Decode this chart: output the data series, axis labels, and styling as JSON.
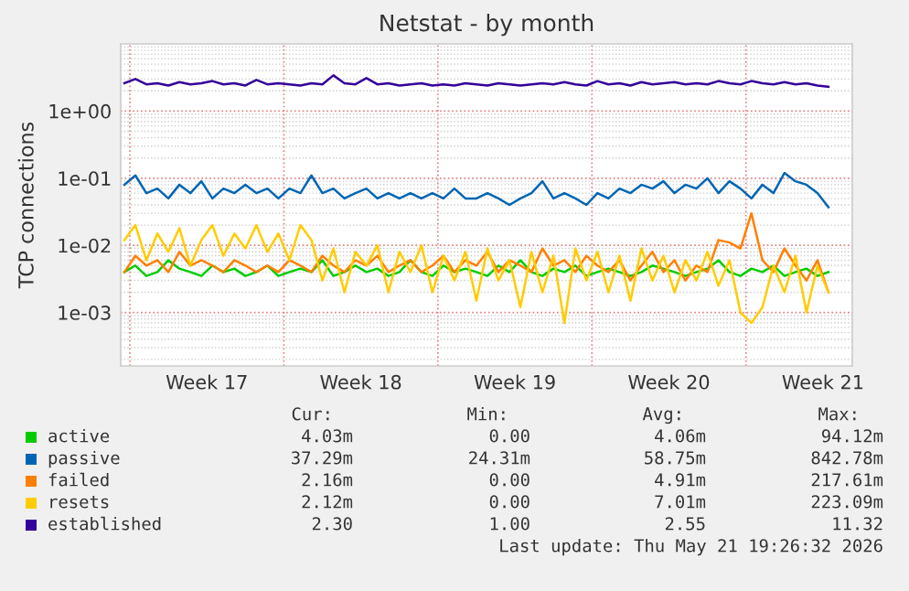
{
  "chart_data": {
    "type": "line",
    "title": "Netstat - by month",
    "ylabel": "TCP connections",
    "log": "y",
    "x": [
      "2026-04-19T18:00",
      "2026-04-20T06:00",
      "2026-04-20T18:00",
      "2026-04-21T06:00",
      "2026-04-21T18:00",
      "2026-04-22T06:00",
      "2026-04-22T18:00",
      "2026-04-23T06:00",
      "2026-04-23T18:00",
      "2026-04-24T06:00",
      "2026-04-24T18:00",
      "2026-04-25T06:00",
      "2026-04-25T18:00",
      "2026-04-26T06:00",
      "2026-04-26T18:00",
      "2026-04-27T06:00",
      "2026-04-27T18:00",
      "2026-04-28T06:00",
      "2026-04-28T18:00",
      "2026-04-29T06:00",
      "2026-04-29T18:00",
      "2026-04-30T06:00",
      "2026-04-30T18:00",
      "2026-05-01T06:00",
      "2026-05-01T18:00",
      "2026-05-02T06:00",
      "2026-05-02T18:00",
      "2026-05-03T06:00",
      "2026-05-03T18:00",
      "2026-05-04T06:00",
      "2026-05-04T18:00",
      "2026-05-05T06:00",
      "2026-05-05T18:00",
      "2026-05-06T06:00",
      "2026-05-06T18:00",
      "2026-05-07T06:00",
      "2026-05-07T18:00",
      "2026-05-08T06:00",
      "2026-05-08T18:00",
      "2026-05-09T06:00",
      "2026-05-09T18:00",
      "2026-05-10T06:00",
      "2026-05-10T18:00",
      "2026-05-11T06:00",
      "2026-05-11T18:00",
      "2026-05-12T06:00",
      "2026-05-12T18:00",
      "2026-05-13T06:00",
      "2026-05-13T18:00",
      "2026-05-14T06:00",
      "2026-05-14T18:00",
      "2026-05-15T06:00",
      "2026-05-15T18:00",
      "2026-05-16T06:00",
      "2026-05-16T18:00",
      "2026-05-17T06:00",
      "2026-05-17T18:00",
      "2026-05-18T06:00",
      "2026-05-18T18:00",
      "2026-05-19T06:00",
      "2026-05-19T18:00",
      "2026-05-20T06:00",
      "2026-05-20T18:00",
      "2026-05-21T06:00",
      "2026-05-21T18:00"
    ],
    "series": [
      {
        "name": "active",
        "color": "#00cc00",
        "values": [
          0.004,
          0.005,
          0.0035,
          0.004,
          0.006,
          0.0045,
          0.004,
          0.0035,
          0.005,
          0.004,
          0.0045,
          0.0035,
          0.004,
          0.005,
          0.0035,
          0.004,
          0.0045,
          0.004,
          0.006,
          0.0035,
          0.004,
          0.005,
          0.004,
          0.0045,
          0.0035,
          0.004,
          0.006,
          0.004,
          0.0035,
          0.005,
          0.004,
          0.0045,
          0.004,
          0.0035,
          0.005,
          0.004,
          0.006,
          0.004,
          0.0035,
          0.0045,
          0.004,
          0.005,
          0.0035,
          0.004,
          0.0045,
          0.004,
          0.0035,
          0.004,
          0.005,
          0.0045,
          0.004,
          0.0035,
          0.004,
          0.0045,
          0.006,
          0.004,
          0.0035,
          0.0045,
          0.004,
          0.005,
          0.0035,
          0.004,
          0.0045,
          0.0035,
          0.004
        ]
      },
      {
        "name": "passive",
        "color": "#0066b3",
        "values": [
          0.08,
          0.11,
          0.06,
          0.07,
          0.05,
          0.08,
          0.06,
          0.09,
          0.05,
          0.07,
          0.06,
          0.08,
          0.06,
          0.07,
          0.05,
          0.07,
          0.06,
          0.11,
          0.06,
          0.07,
          0.05,
          0.06,
          0.07,
          0.05,
          0.06,
          0.05,
          0.06,
          0.05,
          0.06,
          0.05,
          0.07,
          0.05,
          0.05,
          0.06,
          0.05,
          0.04,
          0.05,
          0.06,
          0.09,
          0.05,
          0.06,
          0.05,
          0.04,
          0.06,
          0.05,
          0.07,
          0.06,
          0.08,
          0.07,
          0.09,
          0.06,
          0.08,
          0.07,
          0.1,
          0.06,
          0.09,
          0.07,
          0.05,
          0.08,
          0.06,
          0.12,
          0.09,
          0.08,
          0.06,
          0.037
        ]
      },
      {
        "name": "failed",
        "color": "#ff8000",
        "values": [
          0.004,
          0.007,
          0.005,
          0.006,
          0.004,
          0.008,
          0.005,
          0.006,
          0.005,
          0.004,
          0.006,
          0.005,
          0.004,
          0.005,
          0.004,
          0.006,
          0.005,
          0.004,
          0.007,
          0.005,
          0.004,
          0.006,
          0.005,
          0.007,
          0.004,
          0.005,
          0.006,
          0.004,
          0.005,
          0.007,
          0.004,
          0.006,
          0.005,
          0.008,
          0.004,
          0.006,
          0.005,
          0.004,
          0.009,
          0.005,
          0.006,
          0.004,
          0.007,
          0.005,
          0.004,
          0.006,
          0.003,
          0.005,
          0.008,
          0.004,
          0.006,
          0.003,
          0.005,
          0.004,
          0.012,
          0.011,
          0.009,
          0.03,
          0.006,
          0.004,
          0.009,
          0.005,
          0.003,
          0.006,
          0.002
        ]
      },
      {
        "name": "resets",
        "color": "#ffcc00",
        "values": [
          0.012,
          0.02,
          0.006,
          0.015,
          0.008,
          0.018,
          0.005,
          0.012,
          0.02,
          0.007,
          0.015,
          0.009,
          0.02,
          0.008,
          0.015,
          0.006,
          0.02,
          0.012,
          0.003,
          0.009,
          0.002,
          0.008,
          0.005,
          0.01,
          0.002,
          0.008,
          0.004,
          0.01,
          0.002,
          0.007,
          0.003,
          0.008,
          0.0015,
          0.009,
          0.003,
          0.006,
          0.0012,
          0.008,
          0.002,
          0.007,
          0.0007,
          0.009,
          0.003,
          0.008,
          0.002,
          0.007,
          0.0015,
          0.009,
          0.003,
          0.007,
          0.002,
          0.006,
          0.003,
          0.008,
          0.0025,
          0.006,
          0.001,
          0.0007,
          0.0012,
          0.005,
          0.002,
          0.007,
          0.001,
          0.005,
          0.002
        ]
      },
      {
        "name": "established",
        "color": "#330099",
        "values": [
          2.6,
          3.0,
          2.5,
          2.6,
          2.4,
          2.7,
          2.5,
          2.6,
          2.8,
          2.5,
          2.6,
          2.4,
          2.9,
          2.5,
          2.6,
          2.5,
          2.4,
          2.6,
          2.5,
          3.4,
          2.6,
          2.5,
          3.1,
          2.5,
          2.6,
          2.4,
          2.5,
          2.6,
          2.4,
          2.5,
          2.4,
          2.6,
          2.5,
          2.4,
          2.6,
          2.5,
          2.4,
          2.5,
          2.6,
          2.5,
          2.7,
          2.5,
          2.4,
          2.8,
          2.5,
          2.6,
          2.4,
          2.7,
          2.5,
          2.6,
          2.7,
          2.5,
          2.6,
          2.5,
          2.8,
          2.6,
          2.5,
          2.8,
          2.6,
          2.5,
          2.7,
          2.5,
          2.6,
          2.4,
          2.3
        ]
      }
    ],
    "xlim": [
      "2026-04-19T14:00",
      "2026-05-22T20:00"
    ],
    "xticks": [
      {
        "value": "2026-04-20",
        "label": null
      },
      {
        "value": "2026-04-23T12:00",
        "label": "Week 17"
      },
      {
        "value": "2026-04-27",
        "label": null
      },
      {
        "value": "2026-04-30T12:00",
        "label": "Week 18"
      },
      {
        "value": "2026-05-04",
        "label": null
      },
      {
        "value": "2026-05-07T12:00",
        "label": "Week 19"
      },
      {
        "value": "2026-05-11",
        "label": null
      },
      {
        "value": "2026-05-14T12:00",
        "label": "Week 20"
      },
      {
        "value": "2026-05-18",
        "label": null
      },
      {
        "value": "2026-05-21T12:00",
        "label": "Week 21"
      }
    ],
    "ylim": [
      0.00016,
      10
    ],
    "yticks": [
      {
        "value": 0.001,
        "label": "1e-03"
      },
      {
        "value": 0.01,
        "label": "1e-02"
      },
      {
        "value": 0.1,
        "label": "1e-01"
      },
      {
        "value": 1,
        "label": "1e+00"
      }
    ],
    "grid": true,
    "legend": "bottom",
    "marker": "none",
    "line_style": "solid",
    "annotations": [
      "Cur:",
      "Min:",
      "Avg:",
      "Max:",
      "4.03m",
      "0.00",
      "4.06m",
      "94.12m",
      "37.29m",
      "24.31m",
      "58.75m",
      "842.78m",
      "2.16m",
      "0.00",
      "4.91m",
      "217.61m",
      "2.12m",
      "0.00",
      "7.01m",
      "223.09m",
      "2.30",
      "1.00",
      "2.55",
      "11.32",
      "Last update: Thu May 21 19:26:32 2026"
    ]
  }
}
